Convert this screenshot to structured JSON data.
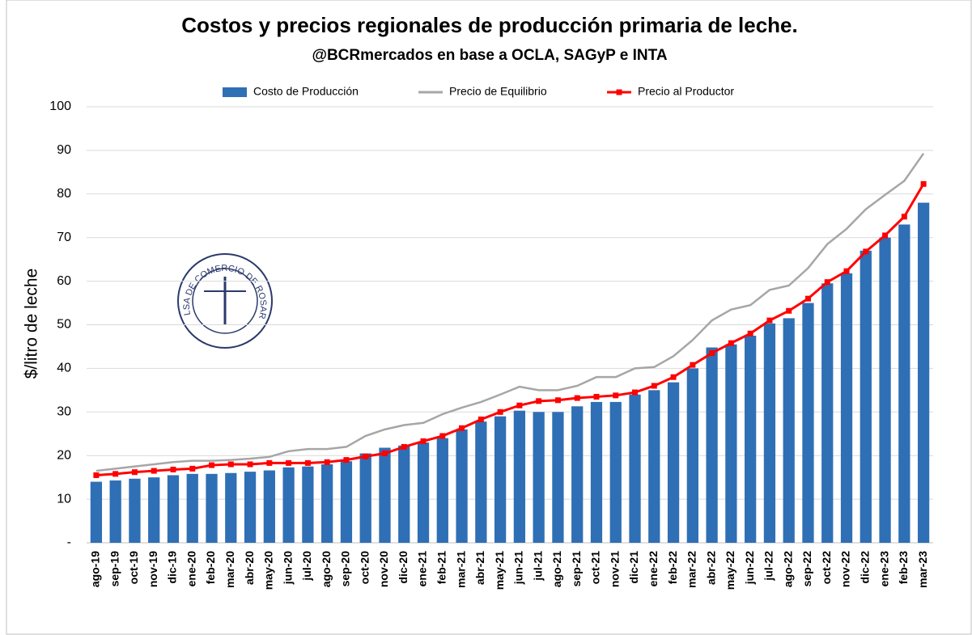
{
  "chart_data": {
    "type": "bar_line",
    "title": "Costos y precios regionales de producción primaria de leche.",
    "subtitle": "@BCRmercados  en base a OCLA, SAGyP e INTA",
    "y_label": "$/litro de leche",
    "logo_text": "BOLSA DE COMERCIO DE ROSARIO",
    "categories": [
      "ago-19",
      "sep-19",
      "oct-19",
      "nov-19",
      "dic-19",
      "ene-20",
      "feb-20",
      "mar-20",
      "abr-20",
      "may-20",
      "jun-20",
      "jul-20",
      "ago-20",
      "sep-20",
      "oct-20",
      "nov-20",
      "dic-20",
      "ene-21",
      "feb-21",
      "mar-21",
      "abr-21",
      "may-21",
      "jun-21",
      "jul-21",
      "ago-21",
      "sep-21",
      "oct-21",
      "nov-21",
      "dic-21",
      "ene-22",
      "feb-22",
      "mar-22",
      "abr-22",
      "may-22",
      "jun-22",
      "jul-22",
      "ago-22",
      "sep-22",
      "oct-22",
      "nov-22",
      "dic-22",
      "ene-23",
      "feb-23",
      "mar-23"
    ],
    "series": [
      {
        "name": "Costo de Producción",
        "type": "bar",
        "color": "#2f6fb5",
        "values": [
          14,
          14.3,
          14.7,
          15,
          15.5,
          15.8,
          15.8,
          16,
          16.3,
          16.6,
          17.3,
          17.5,
          18,
          18.7,
          20.5,
          21.8,
          22.3,
          23,
          24,
          26,
          27.8,
          29,
          30.3,
          30,
          30,
          31.3,
          32.3,
          32.3,
          34,
          35,
          36.8,
          40,
          44.8,
          45.5,
          47.5,
          50.3,
          51.5,
          55,
          59.5,
          61.8,
          67,
          70,
          73,
          78
        ]
      },
      {
        "name": "Precio de Equilibrio",
        "type": "line",
        "color": "#a6a6a6",
        "values": [
          16.5,
          17,
          17.5,
          18,
          18.5,
          18.8,
          18.8,
          19,
          19.3,
          19.7,
          21,
          21.5,
          21.5,
          22,
          24.5,
          26,
          27,
          27.5,
          29.5,
          31,
          32.3,
          34,
          35.8,
          35,
          35,
          36,
          38,
          38,
          40,
          40.3,
          42.8,
          46.5,
          51,
          53.5,
          54.5,
          58,
          59,
          63,
          68.5,
          72,
          76.5,
          79.8,
          83,
          89.3
        ]
      },
      {
        "name": "Precio al Productor",
        "type": "line_marker",
        "color": "#ff0000",
        "values": [
          15.5,
          15.8,
          16.2,
          16.5,
          16.8,
          17,
          17.8,
          18,
          18,
          18.3,
          18.3,
          18.3,
          18.5,
          19,
          19.8,
          20.5,
          22,
          23.3,
          24.5,
          26.3,
          28.3,
          30,
          31.5,
          32.5,
          32.7,
          33.2,
          33.5,
          33.8,
          34.5,
          36,
          38,
          40.8,
          43.5,
          45.8,
          48,
          51,
          53.2,
          56,
          59.8,
          62.3,
          66.8,
          70.5,
          74.8,
          82.3
        ]
      }
    ],
    "ylim": [
      0,
      100
    ],
    "yticks": [
      {
        "value": 0,
        "label": "-"
      },
      10,
      20,
      30,
      40,
      50,
      60,
      70,
      80,
      90,
      100
    ],
    "grid": true,
    "legend": "top"
  }
}
